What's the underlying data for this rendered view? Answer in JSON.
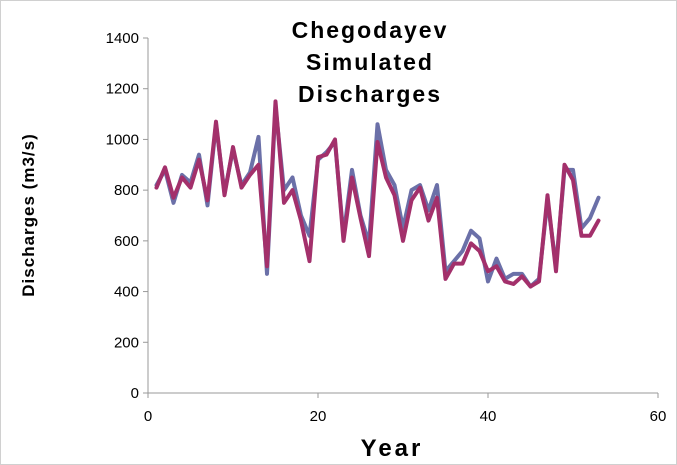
{
  "chart_data": {
    "type": "line",
    "title": "Chegodayev Simulated Discharges",
    "x_label": "Year",
    "y_label": "Discharges (m3/s)",
    "x": [
      1,
      2,
      3,
      4,
      5,
      6,
      7,
      8,
      9,
      10,
      11,
      12,
      13,
      14,
      15,
      16,
      17,
      18,
      19,
      20,
      21,
      22,
      23,
      24,
      25,
      26,
      27,
      28,
      29,
      30,
      31,
      32,
      33,
      34,
      35,
      36,
      37,
      38,
      39,
      40,
      41,
      42,
      43,
      44,
      45,
      46,
      47,
      48,
      49,
      50,
      51,
      52,
      53
    ],
    "series": [
      {
        "color": "#6b70a8",
        "values": [
          820,
          880,
          750,
          860,
          830,
          940,
          740,
          1060,
          790,
          960,
          820,
          870,
          1010,
          470,
          1130,
          800,
          850,
          700,
          620,
          920,
          950,
          990,
          620,
          880,
          700,
          590,
          1060,
          880,
          820,
          650,
          800,
          820,
          720,
          820,
          480,
          520,
          560,
          640,
          610,
          440,
          530,
          450,
          470,
          470,
          420,
          450,
          760,
          500,
          880,
          880,
          650,
          690,
          770
        ]
      },
      {
        "color": "#a3306b",
        "values": [
          810,
          890,
          770,
          850,
          810,
          920,
          760,
          1070,
          780,
          970,
          810,
          860,
          900,
          500,
          1150,
          750,
          800,
          680,
          520,
          930,
          940,
          1000,
          600,
          850,
          690,
          540,
          990,
          850,
          780,
          600,
          760,
          810,
          680,
          770,
          450,
          510,
          510,
          590,
          560,
          480,
          500,
          440,
          430,
          460,
          420,
          440,
          780,
          480,
          900,
          840,
          620,
          620,
          680
        ]
      }
    ],
    "xlim": [
      0,
      60
    ],
    "xticks": [
      0,
      20,
      40,
      60
    ],
    "ylim": [
      0,
      1400
    ],
    "yticks": [
      0,
      200,
      400,
      600,
      800,
      1000,
      1200,
      1400
    ],
    "grid": false
  }
}
